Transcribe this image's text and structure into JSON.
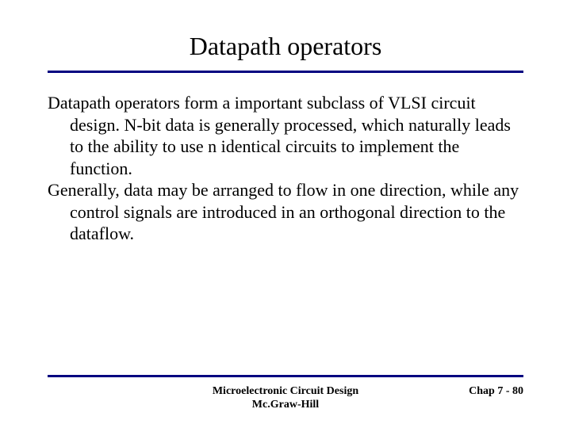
{
  "title": "Datapath operators",
  "paragraph1": "Datapath operators form a important subclass of VLSI circuit design. N-bit data is generally processed, which naturally leads to the ability to use n identical circuits to implement the function.",
  "paragraph2": "Generally, data may be arranged to flow in one direction, while any control signals are introduced in an orthogonal direction to the dataflow.",
  "footer": {
    "center_line1": "Microelectronic Circuit Design",
    "center_line2": "Mc.Graw-Hill",
    "right": "Chap 7 - 80"
  },
  "colors": {
    "rule": "#000080",
    "text": "#000000",
    "background": "#ffffff"
  },
  "typography": {
    "title_fontsize": 32,
    "body_fontsize": 22,
    "footer_fontsize": 14,
    "font_family": "Times New Roman"
  }
}
